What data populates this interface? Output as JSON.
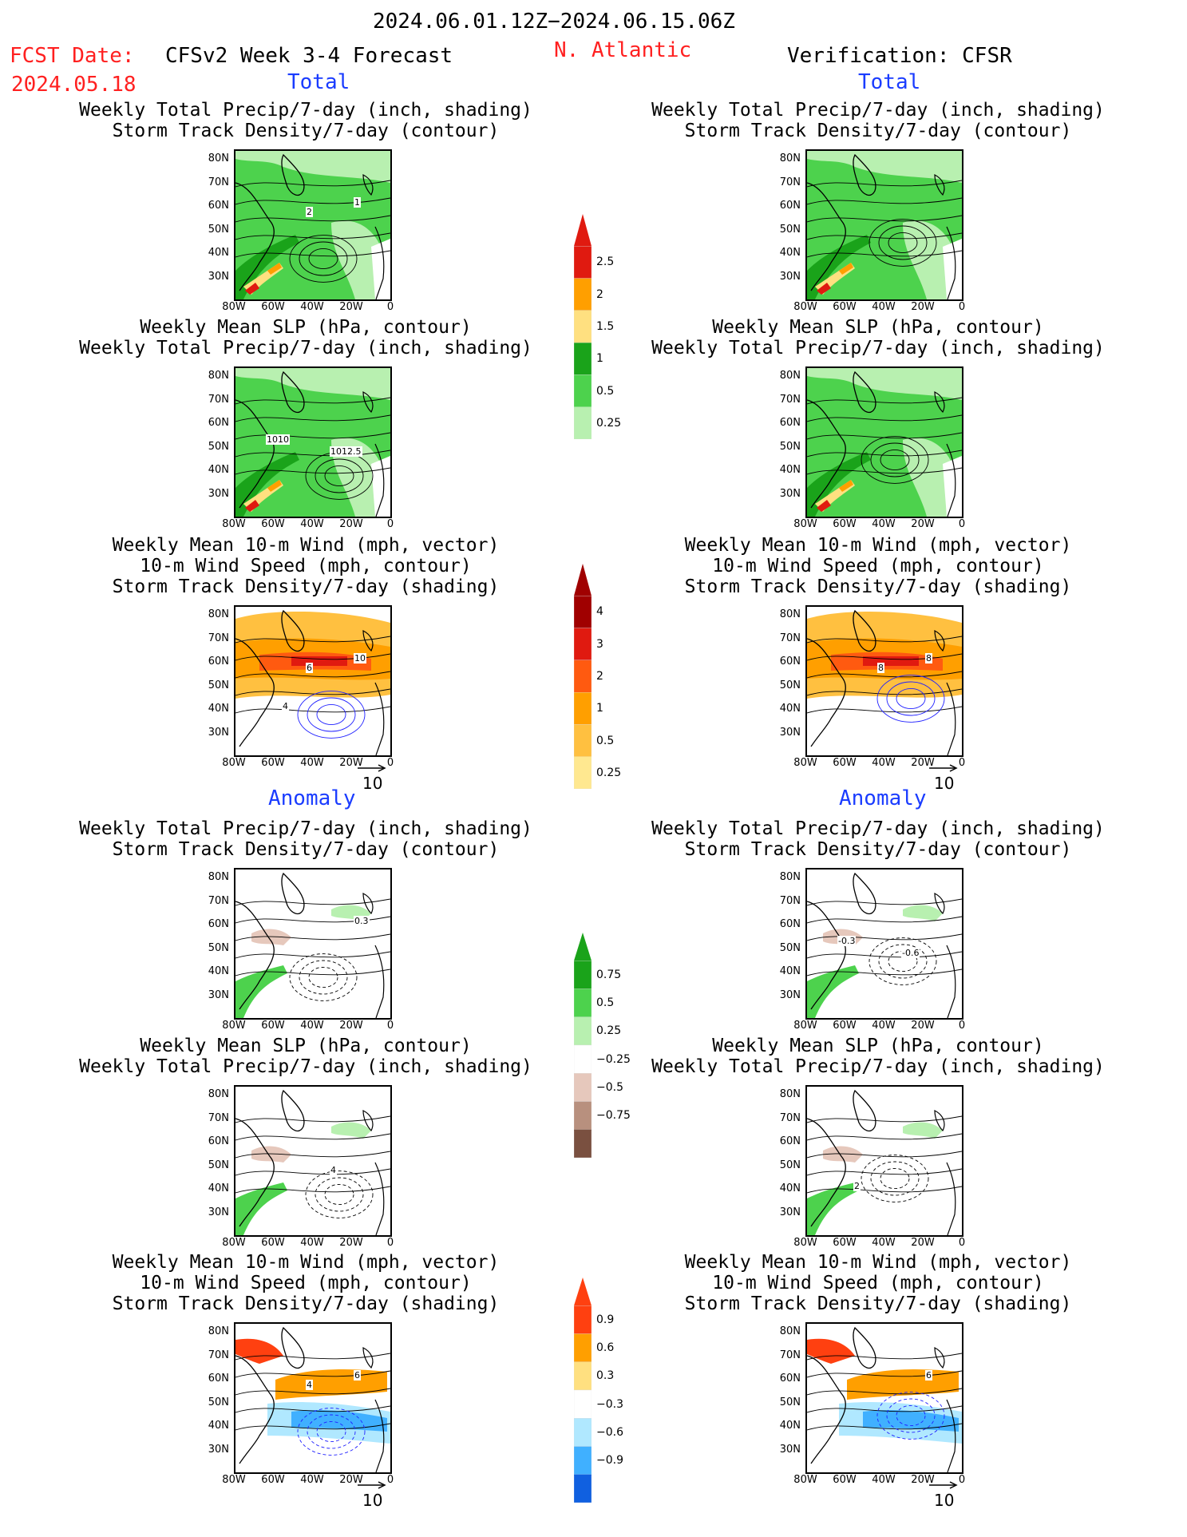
{
  "header": {
    "date_range": "2024.06.01.12Z−2024.06.15.06Z",
    "fcst_label": "FCST Date:",
    "fcst_date": "2024.05.18",
    "model_title": "CFSv2 Week 3-4 Forecast",
    "region": "N. Atlantic",
    "verification": "Verification: CFSR"
  },
  "sections": {
    "total": "Total",
    "anomaly": "Anomaly"
  },
  "titles": {
    "precip_storm": [
      "Weekly Total Precip/7-day (inch, shading)",
      "Storm Track Density/7-day (contour)"
    ],
    "slp_precip": [
      "Weekly Mean SLP (hPa, contour)",
      "Weekly Total Precip/7-day (inch, shading)"
    ],
    "wind": [
      "Weekly Mean 10-m Wind (mph, vector)",
      "10-m Wind Speed (mph, contour)",
      "Storm Track Density/7-day (shading)"
    ]
  },
  "axes": {
    "lat_ticks": [
      "80N",
      "70N",
      "60N",
      "50N",
      "40N",
      "30N"
    ],
    "lon_ticks": [
      "80W",
      "60W",
      "40W",
      "20W",
      "0"
    ]
  },
  "contour_labels": {
    "fc_precip_storm": [
      "2",
      "1"
    ],
    "fc_slp": [
      "1010",
      "1012.5"
    ],
    "fc_wind": [
      "4",
      "6",
      "10"
    ],
    "ver_wind": [
      "8",
      "8"
    ],
    "anom_fc_precip": [
      "0.3"
    ],
    "anom_ver_precip": [
      "-0.3",
      "-0.6"
    ],
    "anom_fc_slp": [
      "4"
    ],
    "anom_ver_slp": [
      "2"
    ],
    "anom_fc_wind": [
      "4",
      "6"
    ],
    "anom_ver_wind": [
      "6"
    ]
  },
  "reference_vector": "10",
  "colorbars": {
    "precip": {
      "labels": [
        "2.5",
        "2",
        "1.5",
        "1",
        "0.5",
        "0.25"
      ],
      "colors": [
        "#e01a10",
        "#ff9f00",
        "#ffe080",
        "#1aa31a",
        "#4dd24d",
        "#b8f0b0"
      ]
    },
    "storm": {
      "labels": [
        "4",
        "3",
        "2",
        "1",
        "0.5",
        "0.25"
      ],
      "colors": [
        "#a00000",
        "#e01a10",
        "#ff5a10",
        "#ff9f00",
        "#ffc040",
        "#ffe890"
      ]
    },
    "precip_anom": {
      "labels": [
        "0.75",
        "0.5",
        "0.25",
        "−0.25",
        "−0.5",
        "−0.75"
      ],
      "colors": [
        "#1aa31a",
        "#4dd24d",
        "#b8f0b0",
        "#ffffff",
        "#e6c8bc",
        "#b8907e",
        "#7a5040"
      ]
    },
    "storm_anom": {
      "labels": [
        "0.9",
        "0.6",
        "0.3",
        "−0.3",
        "−0.6",
        "−0.9"
      ],
      "colors": [
        "#ff4010",
        "#ff9f00",
        "#ffe080",
        "#ffffff",
        "#b0e8ff",
        "#40b0ff",
        "#1060e0"
      ]
    }
  },
  "colors": {
    "forecast_red": "#ff2020",
    "section_blue": "#1a3cff"
  }
}
